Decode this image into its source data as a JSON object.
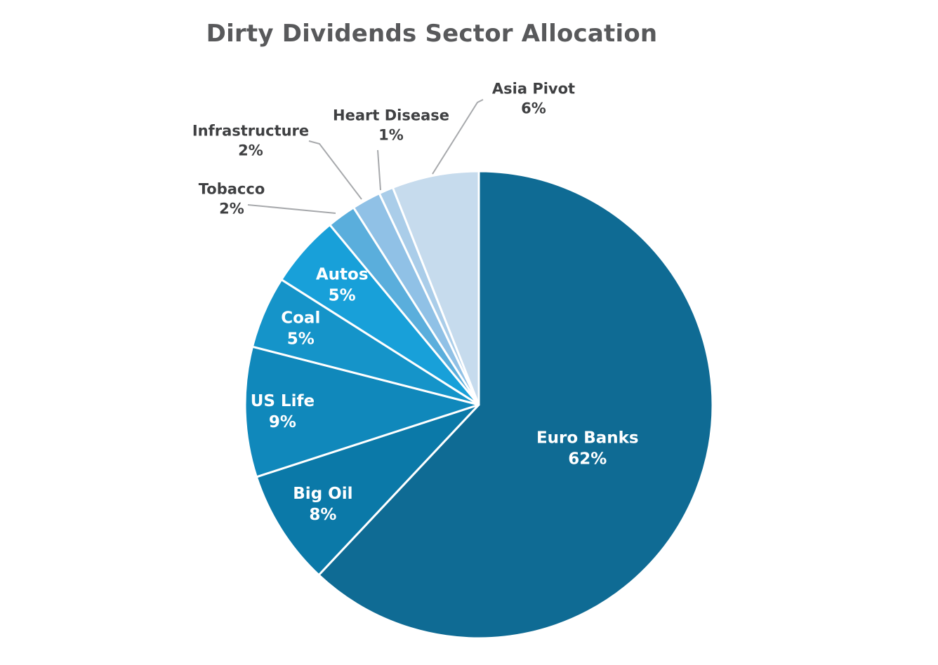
{
  "chart_data": {
    "type": "pie",
    "title": "Dirty Dividends Sector Allocation",
    "start_angle_deg": 0,
    "direction": "clockwise",
    "slices": [
      {
        "name": "Euro Banks",
        "label": "Euro Banks",
        "value": 62,
        "value_label": "62%",
        "color": "#0f6b94",
        "label_placement": "inside",
        "text_color": "#ffffff"
      },
      {
        "name": "Big Oil",
        "label": "Big Oil",
        "value": 8,
        "value_label": "8%",
        "color": "#0b79a8",
        "label_placement": "inside",
        "text_color": "#ffffff"
      },
      {
        "name": "US Life",
        "label": "US Life",
        "value": 9,
        "value_label": "9%",
        "color": "#1088bb",
        "label_placement": "inside",
        "text_color": "#ffffff"
      },
      {
        "name": "Coal",
        "label": "Coal",
        "value": 5,
        "value_label": "5%",
        "color": "#1594c9",
        "label_placement": "inside",
        "text_color": "#ffffff"
      },
      {
        "name": "Autos",
        "label": "Autos",
        "value": 5,
        "value_label": "5%",
        "color": "#18a0d9",
        "label_placement": "inside",
        "text_color": "#ffffff"
      },
      {
        "name": "Tobacco",
        "label": "Tobacco",
        "value": 2,
        "value_label": "2%",
        "color": "#5aaedc",
        "label_placement": "outside",
        "text_color": "#3f4042"
      },
      {
        "name": "Infrastructure",
        "label": "Infrastructure",
        "value": 2,
        "value_label": "2%",
        "color": "#90c1e6",
        "label_placement": "outside",
        "text_color": "#3f4042"
      },
      {
        "name": "Heart Disease",
        "label": "Heart Disease",
        "value": 1,
        "value_label": "1%",
        "color": "#aacde9",
        "label_placement": "outside",
        "text_color": "#3f4042"
      },
      {
        "name": "Asia Pivot",
        "label": "Asia Pivot",
        "value": 6,
        "value_label": "6%",
        "color": "#c6dbed",
        "label_placement": "outside",
        "text_color": "#3f4042"
      }
    ]
  }
}
